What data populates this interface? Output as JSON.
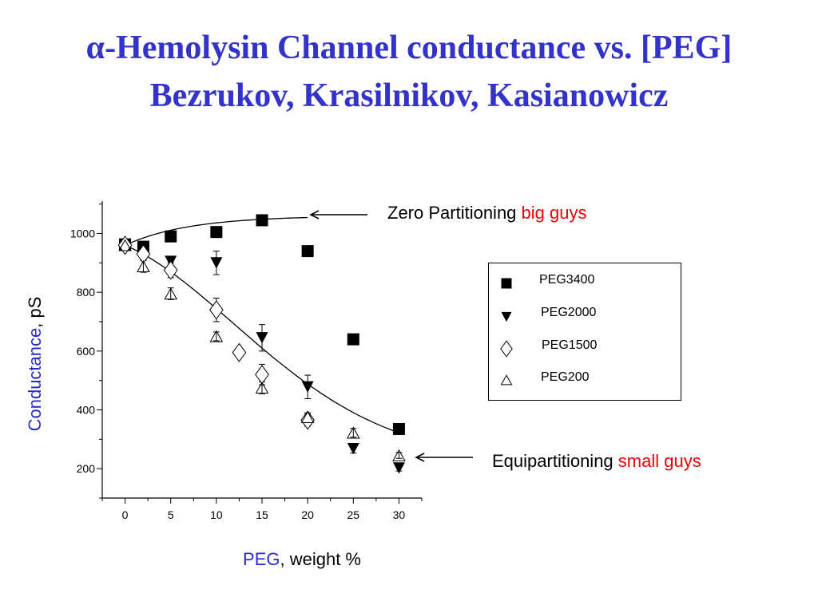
{
  "title": {
    "alpha": "α",
    "line1": "-Hemolysin Channel conductance vs. [PEG]",
    "line2": "Bezrukov, Krasilnikov, Kasianowicz"
  },
  "annotations": {
    "top": {
      "black": "Zero Partitioning ",
      "red": "big guys"
    },
    "bottom": {
      "black": "Equipartitioning ",
      "red": "small guys"
    }
  },
  "axis_labels": {
    "y_colored": "Conductance",
    "y_rest": ", pS",
    "x_colored": "PEG",
    "x_rest": ", weight %"
  },
  "colors": {
    "title": "#3333cc",
    "axis_label_accent": "#2a2acc",
    "annotation_accent": "#ee0000",
    "markers": "#000000"
  },
  "chart_data": {
    "type": "scatter",
    "x_ticks": [
      0,
      5,
      10,
      15,
      20,
      25,
      30
    ],
    "y_ticks": [
      200,
      400,
      600,
      800,
      1000
    ],
    "xlim": [
      -2.5,
      32.5
    ],
    "ylim": [
      100,
      1110
    ],
    "legend_position": "right",
    "series": [
      {
        "name": "PEG3400",
        "marker": "square",
        "x": [
          0,
          2,
          5,
          10,
          15,
          20,
          25,
          30
        ],
        "y": [
          963,
          955,
          990,
          1005,
          1045,
          940,
          640,
          335
        ],
        "err": [
          10,
          15,
          10,
          10,
          5,
          5,
          5,
          5
        ]
      },
      {
        "name": "PEG2000",
        "marker": "triangle-down",
        "x": [
          0,
          2,
          5,
          10,
          15,
          20,
          25,
          30
        ],
        "y": [
          955,
          950,
          905,
          900,
          645,
          478,
          268,
          202
        ],
        "err": [
          10,
          15,
          15,
          40,
          45,
          40,
          15,
          10
        ]
      },
      {
        "name": "PEG1500",
        "marker": "diamond",
        "x": [
          0,
          2,
          5,
          10,
          12.5,
          15,
          20
        ],
        "y": [
          960,
          930,
          875,
          740,
          595,
          520,
          365
        ],
        "err": [
          10,
          20,
          25,
          40,
          15,
          35,
          20
        ]
      },
      {
        "name": "PEG200",
        "marker": "triangle-up",
        "x": [
          0,
          2,
          5,
          10,
          15,
          20,
          25,
          30
        ],
        "y": [
          960,
          888,
          795,
          650,
          475,
          375,
          322,
          245
        ],
        "err": [
          10,
          20,
          20,
          15,
          20,
          15,
          15,
          10
        ]
      }
    ]
  }
}
